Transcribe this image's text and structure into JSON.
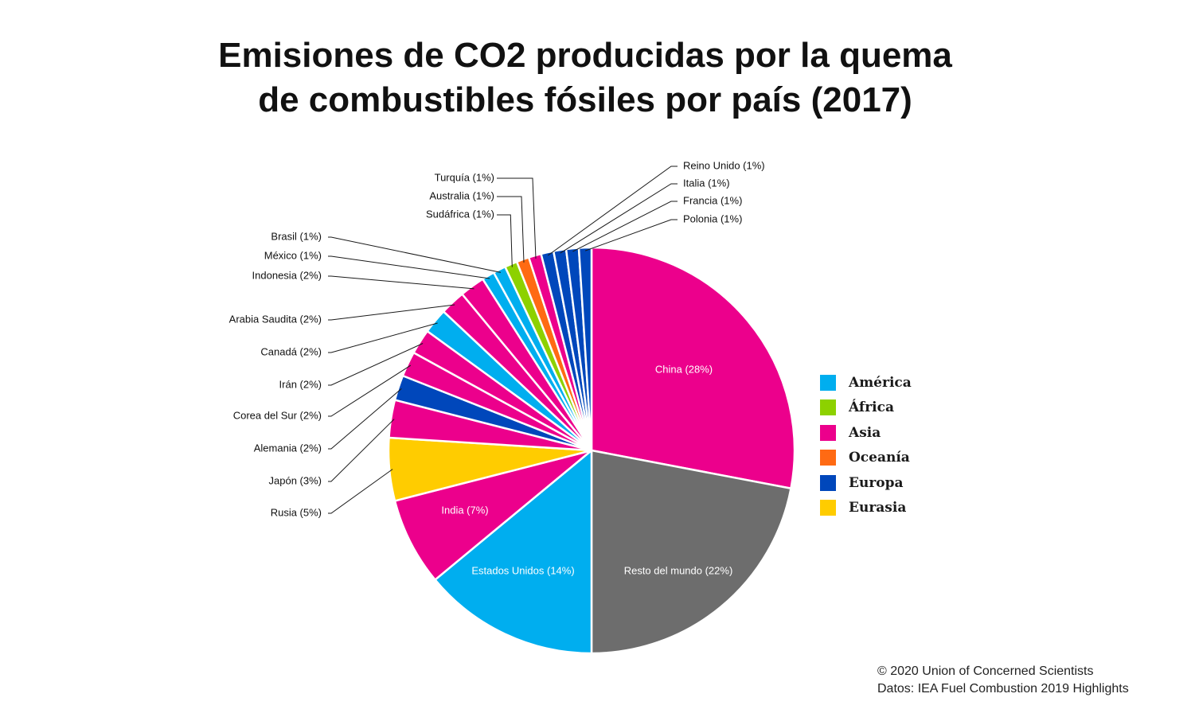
{
  "chart_data": {
    "type": "pie",
    "title_lines": [
      "Emisiones de CO2 producidas por la quema",
      "de combustibles fósiles por país (2017)"
    ],
    "region_colors": {
      "América": "#00AEEF",
      "África": "#8DD100",
      "Asia": "#EC008C",
      "Oceanía": "#FF6A13",
      "Europa": "#0047BB",
      "Eurasia": "#FFCC00",
      "Resto": "#6D6D6D"
    },
    "slices": [
      {
        "label": "China (28%)",
        "value": 28,
        "region": "Asia"
      },
      {
        "label": "Resto del mundo (22%)",
        "value": 22,
        "region": "Resto"
      },
      {
        "label": "Estados Unidos (14%)",
        "value": 14,
        "region": "América"
      },
      {
        "label": "India (7%)",
        "value": 7,
        "region": "Asia"
      },
      {
        "label": "Rusia (5%)",
        "value": 5,
        "region": "Eurasia"
      },
      {
        "label": "Japón (3%)",
        "value": 3,
        "region": "Asia"
      },
      {
        "label": "Alemania (2%)",
        "value": 2,
        "region": "Europa"
      },
      {
        "label": "Corea del Sur (2%)",
        "value": 2,
        "region": "Asia"
      },
      {
        "label": "Irán (2%)",
        "value": 2,
        "region": "Asia"
      },
      {
        "label": "Canadá (2%)",
        "value": 2,
        "region": "América"
      },
      {
        "label": "Arabia Saudita (2%)",
        "value": 2,
        "region": "Asia"
      },
      {
        "label": "Indonesia (2%)",
        "value": 2,
        "region": "Asia"
      },
      {
        "label": "México (1%)",
        "value": 1,
        "region": "América"
      },
      {
        "label": "Brasil (1%)",
        "value": 1,
        "region": "América"
      },
      {
        "label": "Sudáfrica (1%)",
        "value": 1,
        "region": "África"
      },
      {
        "label": "Australia (1%)",
        "value": 1,
        "region": "Oceanía"
      },
      {
        "label": "Turquía (1%)",
        "value": 1,
        "region": "Asia"
      },
      {
        "label": "Reino Unido (1%)",
        "value": 1,
        "region": "Europa"
      },
      {
        "label": "Italia (1%)",
        "value": 1,
        "region": "Europa"
      },
      {
        "label": "Francia (1%)",
        "value": 1,
        "region": "Europa"
      },
      {
        "label": "Polonia (1%)",
        "value": 1,
        "region": "Europa"
      }
    ],
    "legend": [
      "América",
      "África",
      "Asia",
      "Oceanía",
      "Europa",
      "Eurasia"
    ],
    "legend_placement": "right"
  },
  "credits": {
    "line1": "© 2020 Union of Concerned Scientists",
    "line2": "Datos: IEA Fuel Combustion 2019 Highlights"
  }
}
